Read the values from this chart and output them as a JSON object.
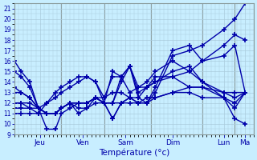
{
  "xlabel": "Température (°c)",
  "bg_color": "#c8eeff",
  "line_color": "#0000aa",
  "grid_color": "#aaccdd",
  "marker": "+",
  "markersize": 4,
  "markeredgewidth": 1.2,
  "linewidth": 1.0,
  "ylim": [
    9,
    21
  ],
  "yticks": [
    9,
    10,
    11,
    12,
    13,
    14,
    15,
    16,
    17,
    18,
    19,
    20,
    21
  ],
  "xlim": [
    0,
    280
  ],
  "day_ticks": [
    30,
    80,
    130,
    185,
    245,
    270
  ],
  "day_labels": [
    "Jeu",
    "Ven",
    "Sam",
    "Dim",
    "Lun",
    "Ma"
  ],
  "vlines": [
    55,
    105,
    160,
    220,
    258
  ],
  "series_x": [
    [
      0,
      8,
      18,
      28,
      38,
      48,
      55,
      65,
      75,
      85,
      95,
      105,
      115,
      125,
      135,
      145,
      155,
      165,
      185,
      205,
      220,
      245,
      258,
      270
    ],
    [
      0,
      8,
      18,
      28,
      38,
      48,
      55,
      65,
      75,
      85,
      95,
      105,
      115,
      125,
      135,
      145,
      155,
      165,
      185,
      205,
      220,
      245,
      258,
      270
    ],
    [
      0,
      8,
      18,
      28,
      38,
      48,
      55,
      65,
      75,
      85,
      95,
      105,
      115,
      125,
      135,
      145,
      155,
      165,
      185,
      205,
      220,
      245,
      258,
      270
    ],
    [
      0,
      8,
      18,
      28,
      38,
      48,
      55,
      65,
      75,
      85,
      95,
      105,
      115,
      125,
      135,
      145,
      155,
      165,
      185,
      205,
      220,
      245,
      258,
      270
    ],
    [
      0,
      8,
      18,
      28,
      38,
      48,
      55,
      65,
      75,
      85,
      95,
      105,
      115,
      125,
      135,
      145,
      155,
      165,
      185,
      205,
      220,
      245,
      258,
      270
    ],
    [
      0,
      8,
      18,
      28,
      38,
      48,
      55,
      65,
      75,
      85,
      95,
      105,
      115,
      125,
      135,
      145,
      155,
      165,
      185,
      205,
      220,
      245,
      258,
      270
    ],
    [
      0,
      8,
      18,
      28,
      38,
      48,
      55,
      65,
      75,
      85,
      95,
      105,
      115,
      125,
      135,
      145,
      155,
      165,
      185,
      205,
      220,
      245,
      258,
      270
    ],
    [
      0,
      8,
      18,
      28,
      38,
      48,
      55,
      65,
      75,
      85,
      95,
      105,
      115,
      125,
      135,
      145,
      155,
      165,
      185,
      205,
      220,
      245,
      258,
      270
    ]
  ],
  "series_y": [
    [
      16.0,
      15.0,
      14.0,
      11.5,
      9.5,
      9.5,
      11.0,
      11.5,
      12.0,
      12.0,
      12.5,
      12.5,
      13.0,
      13.0,
      12.5,
      12.5,
      12.0,
      13.0,
      16.5,
      17.0,
      17.5,
      19.0,
      20.0,
      21.5
    ],
    [
      15.0,
      14.5,
      13.5,
      11.5,
      11.0,
      11.0,
      11.5,
      12.0,
      12.0,
      12.0,
      12.5,
      12.0,
      12.0,
      12.0,
      12.5,
      12.0,
      12.0,
      13.5,
      17.0,
      17.5,
      16.0,
      17.5,
      18.5,
      18.0
    ],
    [
      13.5,
      13.0,
      12.5,
      11.5,
      11.0,
      11.0,
      11.5,
      12.0,
      12.0,
      12.0,
      12.5,
      12.0,
      12.0,
      14.0,
      15.5,
      13.5,
      14.0,
      15.0,
      16.0,
      15.0,
      16.0,
      16.5,
      17.5,
      13.0
    ],
    [
      13.0,
      13.0,
      12.5,
      11.5,
      11.0,
      11.0,
      11.5,
      12.0,
      12.0,
      12.0,
      12.5,
      12.0,
      12.0,
      14.5,
      15.5,
      12.5,
      13.5,
      14.5,
      14.5,
      15.0,
      14.0,
      13.0,
      13.0,
      13.0
    ],
    [
      12.0,
      12.0,
      12.0,
      11.5,
      11.0,
      11.0,
      11.5,
      12.0,
      11.5,
      11.5,
      12.5,
      12.0,
      10.5,
      12.0,
      12.5,
      12.0,
      12.5,
      12.5,
      13.0,
      13.5,
      13.5,
      13.0,
      12.5,
      13.0
    ],
    [
      12.0,
      12.0,
      11.5,
      11.0,
      11.0,
      11.0,
      11.5,
      12.0,
      11.0,
      11.5,
      12.0,
      12.0,
      10.5,
      12.0,
      12.0,
      12.0,
      12.0,
      12.5,
      13.0,
      13.0,
      12.5,
      12.5,
      12.0,
      13.0
    ],
    [
      11.5,
      11.5,
      11.5,
      11.5,
      12.0,
      12.5,
      13.0,
      13.5,
      14.0,
      14.5,
      14.0,
      12.5,
      14.5,
      14.5,
      15.5,
      13.0,
      13.5,
      14.0,
      14.5,
      13.5,
      13.5,
      12.5,
      11.5,
      13.0
    ],
    [
      11.0,
      11.0,
      11.0,
      11.0,
      12.0,
      13.0,
      13.5,
      14.0,
      14.5,
      14.5,
      14.0,
      12.0,
      15.0,
      14.5,
      13.0,
      13.5,
      13.5,
      14.0,
      15.0,
      15.5,
      14.0,
      12.5,
      10.5,
      10.0
    ]
  ]
}
